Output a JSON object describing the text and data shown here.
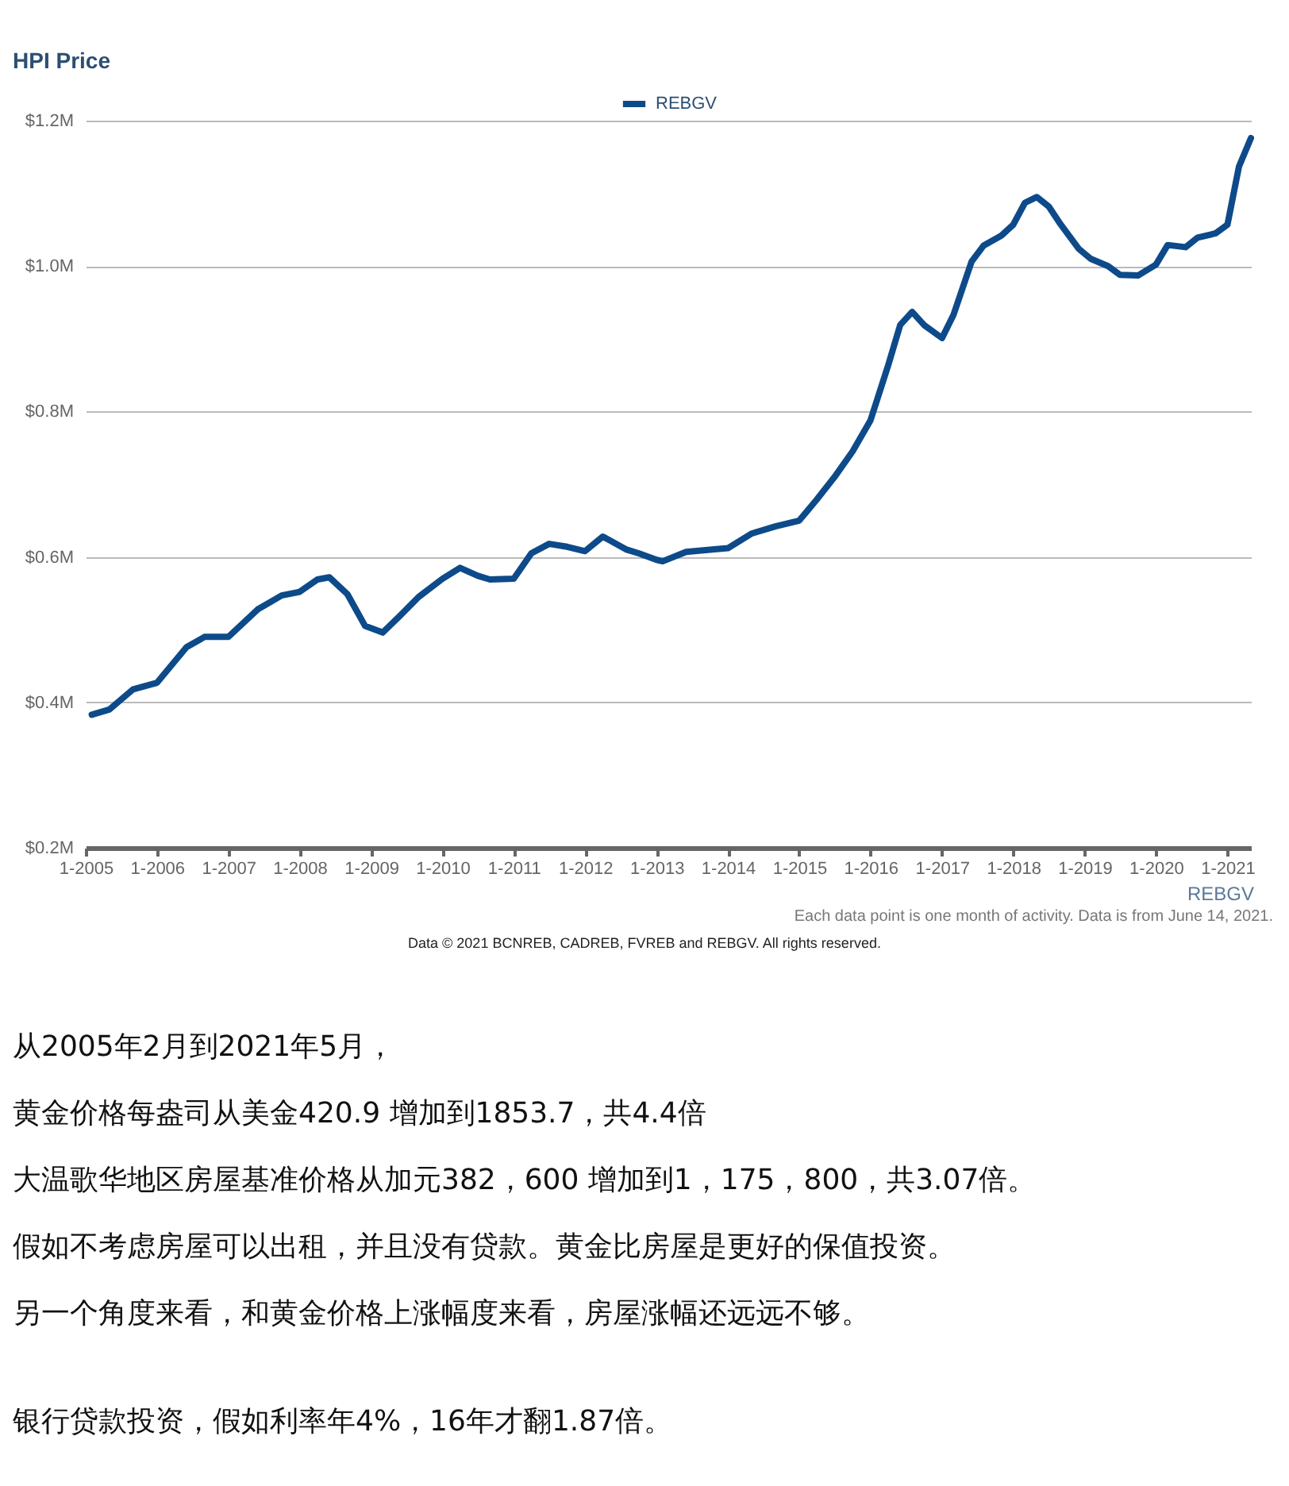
{
  "chart_data": {
    "type": "line",
    "title": "HPI Price",
    "x": [
      "2005-02",
      "2005-05",
      "2005-09",
      "2006-01",
      "2006-06",
      "2006-09",
      "2007-01",
      "2007-06",
      "2007-10",
      "2008-01",
      "2008-04",
      "2008-06",
      "2008-09",
      "2008-12",
      "2009-03",
      "2009-06",
      "2009-09",
      "2010-01",
      "2010-04",
      "2010-07",
      "2010-09",
      "2011-01",
      "2011-04",
      "2011-07",
      "2011-10",
      "2012-01",
      "2012-04",
      "2012-08",
      "2012-10",
      "2013-01",
      "2013-02",
      "2013-06",
      "2013-10",
      "2014-01",
      "2014-05",
      "2014-09",
      "2015-01",
      "2015-04",
      "2015-07",
      "2015-10",
      "2016-01",
      "2016-04",
      "2016-06",
      "2016-08",
      "2016-10",
      "2017-01",
      "2017-03",
      "2017-06",
      "2017-08",
      "2017-11",
      "2018-01",
      "2018-03",
      "2018-05",
      "2018-07",
      "2018-09",
      "2018-12",
      "2019-02",
      "2019-05",
      "2019-07",
      "2019-10",
      "2020-01",
      "2020-03",
      "2020-06",
      "2020-08",
      "2020-11",
      "2021-01",
      "2021-03",
      "2021-05"
    ],
    "series": [
      {
        "name": "REBGV",
        "color": "#0d4a8a",
        "values": [
          0.383,
          0.39,
          0.418,
          0.427,
          0.476,
          0.49,
          0.49,
          0.528,
          0.547,
          0.552,
          0.569,
          0.572,
          0.549,
          0.505,
          0.496,
          0.52,
          0.545,
          0.57,
          0.585,
          0.574,
          0.569,
          0.57,
          0.605,
          0.618,
          0.614,
          0.608,
          0.628,
          0.61,
          0.605,
          0.596,
          0.594,
          0.607,
          0.61,
          0.612,
          0.632,
          0.642,
          0.65,
          0.679,
          0.71,
          0.745,
          0.788,
          0.864,
          0.919,
          0.937,
          0.919,
          0.901,
          0.933,
          1.006,
          1.028,
          1.042,
          1.057,
          1.087,
          1.095,
          1.082,
          1.057,
          1.024,
          1.01,
          1.0,
          0.988,
          0.987,
          1.002,
          1.029,
          1.026,
          1.039,
          1.045,
          1.057,
          1.137,
          1.176
        ]
      }
    ],
    "xlim": [
      "2005-01",
      "2021-05"
    ],
    "xticks": [
      {
        "value": "2005-01",
        "label": "1-2005"
      },
      {
        "value": "2006-01",
        "label": "1-2006"
      },
      {
        "value": "2007-01",
        "label": "1-2007"
      },
      {
        "value": "2008-01",
        "label": "1-2008"
      },
      {
        "value": "2009-01",
        "label": "1-2009"
      },
      {
        "value": "2010-01",
        "label": "1-2010"
      },
      {
        "value": "2011-01",
        "label": "1-2011"
      },
      {
        "value": "2012-01",
        "label": "1-2012"
      },
      {
        "value": "2013-01",
        "label": "1-2013"
      },
      {
        "value": "2014-01",
        "label": "1-2014"
      },
      {
        "value": "2015-01",
        "label": "1-2015"
      },
      {
        "value": "2016-01",
        "label": "1-2016"
      },
      {
        "value": "2017-01",
        "label": "1-2017"
      },
      {
        "value": "2018-01",
        "label": "1-2018"
      },
      {
        "value": "2019-01",
        "label": "1-2019"
      },
      {
        "value": "2020-01",
        "label": "1-2020"
      },
      {
        "value": "2021-01",
        "label": "1-2021"
      }
    ],
    "ylim": [
      0.2,
      1.2
    ],
    "yticks": [
      {
        "value": 0.2,
        "label": "$0.2M"
      },
      {
        "value": 0.4,
        "label": "$0.4M"
      },
      {
        "value": 0.6,
        "label": "$0.6M"
      },
      {
        "value": 0.8,
        "label": "$0.8M"
      },
      {
        "value": 1.0,
        "label": "$1.0M"
      },
      {
        "value": 1.2,
        "label": "$1.2M"
      }
    ],
    "grid": "y",
    "legend": "top",
    "marker": "none",
    "line_style": "solid",
    "annotations": [
      "REBGV",
      "Each data point is one month of activity. Data is from June 14, 2021.",
      "Data © 2021 BCNREB, CADREB, FVREB and REBGV. All rights reserved.",
      "从2005年2月到2021年5月，",
      "黄金价格每盎司从美金420.9 增加到1853.7，共4.4倍",
      "大温歌华地区房屋基准价格从加元382，600 增加到1，175，800，共3.07倍。",
      "假如不考虑房屋可以出租，并且没有贷款。黄金比房屋是更好的保值投资。",
      "另一个角度来看，和黄金价格上涨幅度来看，房屋涨幅还远远不够。",
      "银行贷款投资，假如利率年4%，16年才翻1.87倍。"
    ]
  }
}
